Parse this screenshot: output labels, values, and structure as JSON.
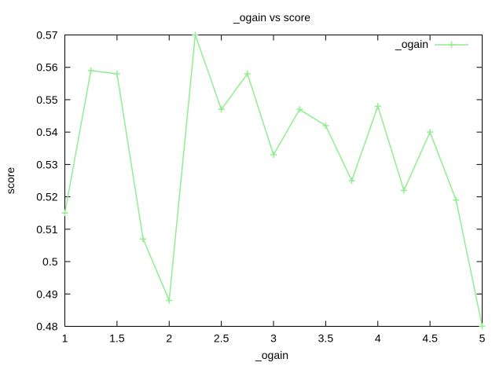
{
  "chart_data": {
    "type": "line",
    "title": "_ogain vs score",
    "xlabel": "_ogain",
    "ylabel": "score",
    "xlim": [
      1,
      5
    ],
    "ylim": [
      0.48,
      0.57
    ],
    "xticks": [
      "1",
      "1.5",
      "2",
      "2.5",
      "3",
      "3.5",
      "4",
      "4.5",
      "5"
    ],
    "yticks": [
      "0.48",
      "0.49",
      "0.5",
      "0.51",
      "0.52",
      "0.53",
      "0.54",
      "0.55",
      "0.56",
      "0.57"
    ],
    "grid": false,
    "legend": "top-right",
    "series": [
      {
        "name": "_ogain",
        "color": "#90ee90",
        "marker": "plus",
        "x": [
          1,
          1.25,
          1.5,
          1.75,
          2,
          2.25,
          2.5,
          2.75,
          3,
          3.25,
          3.5,
          3.75,
          4,
          4.25,
          4.5,
          4.75,
          5
        ],
        "y": [
          0.515,
          0.559,
          0.558,
          0.507,
          0.488,
          0.57,
          0.547,
          0.558,
          0.533,
          0.547,
          0.542,
          0.525,
          0.548,
          0.522,
          0.54,
          0.519,
          0.48
        ]
      }
    ]
  }
}
